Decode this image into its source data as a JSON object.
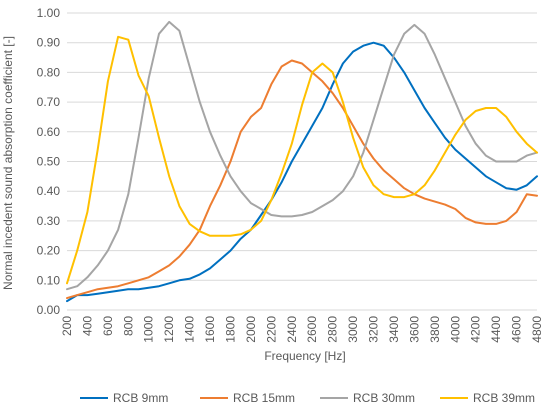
{
  "chart_data": {
    "type": "line",
    "xlabel": "Frequency [Hz]",
    "ylabel": "Normal incedent sound absorption coefficient [-]",
    "xlim": [
      200,
      4800
    ],
    "ylim": [
      0,
      1.0
    ],
    "x_ticks": [
      200,
      400,
      600,
      800,
      1000,
      1200,
      1400,
      1600,
      1800,
      2000,
      2200,
      2400,
      2600,
      2800,
      3000,
      3200,
      3400,
      3600,
      3800,
      4000,
      4200,
      4400,
      4600,
      4800
    ],
    "y_ticks": [
      "0.00",
      "0.10",
      "0.20",
      "0.30",
      "0.40",
      "0.50",
      "0.60",
      "0.70",
      "0.80",
      "0.90",
      "1.00"
    ],
    "grid": "horizontal",
    "legend_position": "bottom",
    "series": [
      {
        "name": "RCB 9mm",
        "color": "#0070c0",
        "x": [
          200,
          300,
          400,
          500,
          600,
          700,
          800,
          900,
          1000,
          1100,
          1200,
          1300,
          1400,
          1500,
          1600,
          1700,
          1800,
          1900,
          2000,
          2100,
          2200,
          2300,
          2400,
          2500,
          2600,
          2700,
          2800,
          2900,
          3000,
          3100,
          3200,
          3300,
          3400,
          3500,
          3600,
          3700,
          3800,
          3900,
          4000,
          4100,
          4200,
          4300,
          4400,
          4500,
          4600,
          4700,
          4800
        ],
        "values": [
          0.03,
          0.05,
          0.05,
          0.055,
          0.06,
          0.065,
          0.07,
          0.07,
          0.075,
          0.08,
          0.09,
          0.1,
          0.105,
          0.12,
          0.14,
          0.17,
          0.2,
          0.24,
          0.27,
          0.32,
          0.37,
          0.43,
          0.5,
          0.56,
          0.62,
          0.68,
          0.76,
          0.83,
          0.87,
          0.89,
          0.9,
          0.89,
          0.85,
          0.8,
          0.74,
          0.68,
          0.63,
          0.58,
          0.54,
          0.51,
          0.48,
          0.45,
          0.43,
          0.41,
          0.405,
          0.42,
          0.45
        ]
      },
      {
        "name": "RCB 15mm",
        "color": "#ed7d31",
        "x": [
          200,
          300,
          400,
          500,
          600,
          700,
          800,
          900,
          1000,
          1100,
          1200,
          1300,
          1400,
          1500,
          1600,
          1700,
          1800,
          1900,
          2000,
          2100,
          2200,
          2300,
          2400,
          2500,
          2600,
          2700,
          2800,
          2900,
          3000,
          3100,
          3200,
          3300,
          3400,
          3500,
          3600,
          3700,
          3800,
          3900,
          4000,
          4100,
          4200,
          4300,
          4400,
          4500,
          4600,
          4700,
          4800
        ],
        "values": [
          0.04,
          0.05,
          0.06,
          0.07,
          0.075,
          0.08,
          0.09,
          0.1,
          0.11,
          0.13,
          0.15,
          0.18,
          0.22,
          0.27,
          0.35,
          0.42,
          0.5,
          0.6,
          0.65,
          0.68,
          0.76,
          0.82,
          0.84,
          0.83,
          0.8,
          0.77,
          0.73,
          0.68,
          0.62,
          0.56,
          0.51,
          0.47,
          0.44,
          0.41,
          0.39,
          0.375,
          0.365,
          0.355,
          0.34,
          0.31,
          0.295,
          0.29,
          0.29,
          0.3,
          0.33,
          0.39,
          0.385
        ]
      },
      {
        "name": "RCB 30mm",
        "color": "#a5a5a5",
        "x": [
          200,
          300,
          400,
          500,
          600,
          700,
          800,
          900,
          1000,
          1100,
          1200,
          1300,
          1400,
          1500,
          1600,
          1700,
          1800,
          1900,
          2000,
          2100,
          2200,
          2300,
          2400,
          2500,
          2600,
          2700,
          2800,
          2900,
          3000,
          3100,
          3200,
          3300,
          3400,
          3500,
          3600,
          3700,
          3800,
          3900,
          4000,
          4100,
          4200,
          4300,
          4400,
          4500,
          4600,
          4700,
          4800
        ],
        "values": [
          0.07,
          0.08,
          0.11,
          0.15,
          0.2,
          0.27,
          0.39,
          0.58,
          0.78,
          0.93,
          0.97,
          0.94,
          0.82,
          0.7,
          0.6,
          0.52,
          0.45,
          0.4,
          0.36,
          0.34,
          0.32,
          0.315,
          0.315,
          0.32,
          0.33,
          0.35,
          0.37,
          0.4,
          0.45,
          0.53,
          0.64,
          0.75,
          0.86,
          0.93,
          0.96,
          0.93,
          0.86,
          0.78,
          0.7,
          0.62,
          0.56,
          0.52,
          0.5,
          0.5,
          0.5,
          0.52,
          0.53
        ]
      },
      {
        "name": "RCB 39mm",
        "color": "#ffc000",
        "x": [
          200,
          300,
          400,
          500,
          600,
          700,
          800,
          900,
          1000,
          1100,
          1200,
          1300,
          1400,
          1500,
          1600,
          1700,
          1800,
          1900,
          2000,
          2100,
          2200,
          2300,
          2400,
          2500,
          2600,
          2700,
          2800,
          2900,
          3000,
          3100,
          3200,
          3300,
          3400,
          3500,
          3600,
          3700,
          3800,
          3900,
          4000,
          4100,
          4200,
          4300,
          4400,
          4500,
          4600,
          4700,
          4800
        ],
        "values": [
          0.09,
          0.2,
          0.33,
          0.54,
          0.77,
          0.92,
          0.91,
          0.79,
          0.72,
          0.58,
          0.45,
          0.35,
          0.29,
          0.265,
          0.25,
          0.25,
          0.25,
          0.255,
          0.27,
          0.3,
          0.37,
          0.46,
          0.56,
          0.69,
          0.8,
          0.83,
          0.8,
          0.7,
          0.58,
          0.48,
          0.42,
          0.39,
          0.38,
          0.38,
          0.39,
          0.42,
          0.47,
          0.53,
          0.59,
          0.64,
          0.67,
          0.68,
          0.68,
          0.65,
          0.6,
          0.56,
          0.53
        ]
      }
    ]
  }
}
